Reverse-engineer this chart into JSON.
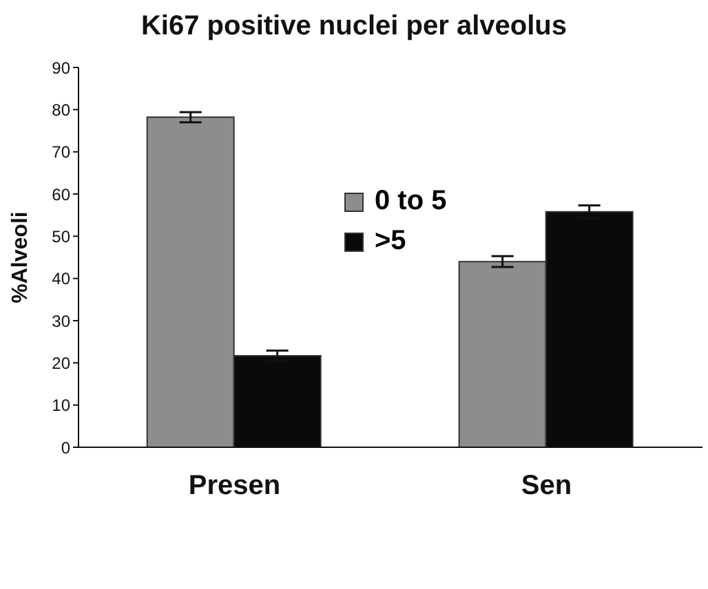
{
  "chart_data": {
    "type": "bar",
    "title": "Ki67 positive nuclei per alveolus",
    "ylabel": "%Alveoli",
    "categories": [
      "Presen",
      "Sen"
    ],
    "series": [
      {
        "name": "0 to 5",
        "color": "#8c8e8c",
        "values": [
          78.2,
          44
        ],
        "errors": [
          1.2,
          1.3
        ]
      },
      {
        "name": ">5",
        "color": "#0a0a0a",
        "values": [
          21.7,
          55.8
        ],
        "errors": [
          1.2,
          1.5
        ]
      }
    ],
    "ylim": [
      0,
      90
    ],
    "yticks": [
      0,
      10,
      20,
      30,
      40,
      50,
      60,
      70,
      80,
      90
    ],
    "grid": false,
    "legend": "top"
  }
}
